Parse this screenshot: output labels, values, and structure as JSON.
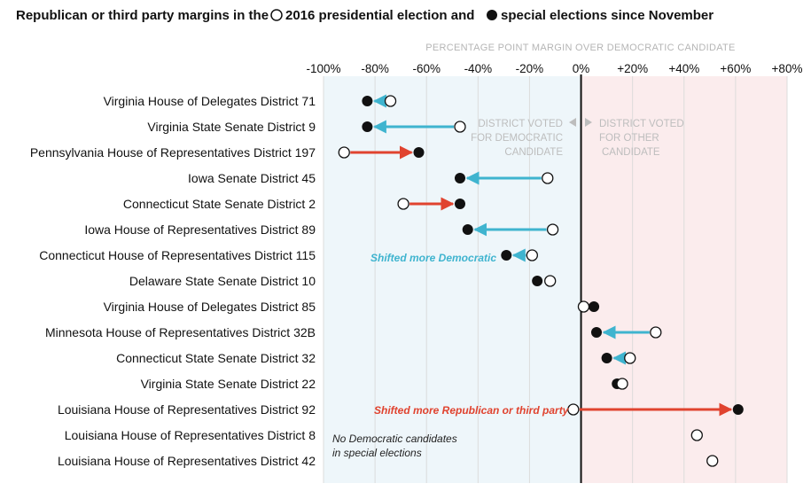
{
  "chart_data": {
    "type": "dot-arrow",
    "title_part1": "Republican or third party margins in the",
    "legend": [
      {
        "label": "2016 presidential election and",
        "style": "open"
      },
      {
        "label": "special elections since November",
        "style": "filled"
      }
    ],
    "axis_label": "PERCENTAGE POINT MARGIN OVER DEMOCRATIC CANDIDATE",
    "xlim": [
      -100,
      80
    ],
    "ticks": [
      -100,
      -80,
      -60,
      -40,
      -20,
      0,
      20,
      40,
      60,
      80
    ],
    "tick_labels": [
      "-100%",
      "-80%",
      "-60%",
      "-40%",
      "-20%",
      "0%",
      "+20%",
      "+40%",
      "+60%",
      "+80%"
    ],
    "regions": {
      "dem_color": "#eef6fa",
      "other_color": "#fbeced"
    },
    "colors": {
      "dem_arrow": "#3fb4cf",
      "rep_arrow": "#e0432f",
      "zero_line": "#111111",
      "grid": "#dcdcdc"
    },
    "region_notes": {
      "dem": [
        "DISTRICT VOTED",
        "FOR DEMOCRATIC",
        "CANDIDATE"
      ],
      "other": [
        "DISTRICT VOTED",
        "FOR OTHER",
        "CANDIDATE"
      ]
    },
    "annotations": {
      "dem_shift": "Shifted more Democratic",
      "rep_shift": "Shifted more Republican or third party",
      "no_dem": [
        "No Democratic candidates",
        "in special elections"
      ]
    },
    "rows": [
      {
        "label": "Virginia House of Delegates District 71",
        "pres": -74,
        "special": -83
      },
      {
        "label": "Virginia State Senate District 9",
        "pres": -47,
        "special": -83
      },
      {
        "label": "Pennsylvania House of Representatives District 197",
        "pres": -92,
        "special": -63
      },
      {
        "label": "Iowa Senate District 45",
        "pres": -13,
        "special": -47
      },
      {
        "label": "Connecticut State Senate District 2",
        "pres": -69,
        "special": -47
      },
      {
        "label": "Iowa House of Representatives District 89",
        "pres": -11,
        "special": -44
      },
      {
        "label": "Connecticut House of Representatives District 115",
        "pres": -19,
        "special": -29
      },
      {
        "label": "Delaware State Senate District 10",
        "pres": -12,
        "special": -17
      },
      {
        "label": "Virginia House of Delegates District 85",
        "pres": 1,
        "special": 5
      },
      {
        "label": "Minnesota House of Representatives District 32B",
        "pres": 29,
        "special": 6
      },
      {
        "label": "Connecticut State Senate District 32",
        "pres": 19,
        "special": 10
      },
      {
        "label": "Virginia State Senate District 22",
        "pres": 16,
        "special": 14
      },
      {
        "label": "Louisiana House of Representatives District 92",
        "pres": -3,
        "special": 61
      },
      {
        "label": "Louisiana House of Representatives District 8",
        "pres": 45,
        "special": null
      },
      {
        "label": "Louisiana House of Representatives District 42",
        "pres": 51,
        "special": null
      }
    ]
  }
}
